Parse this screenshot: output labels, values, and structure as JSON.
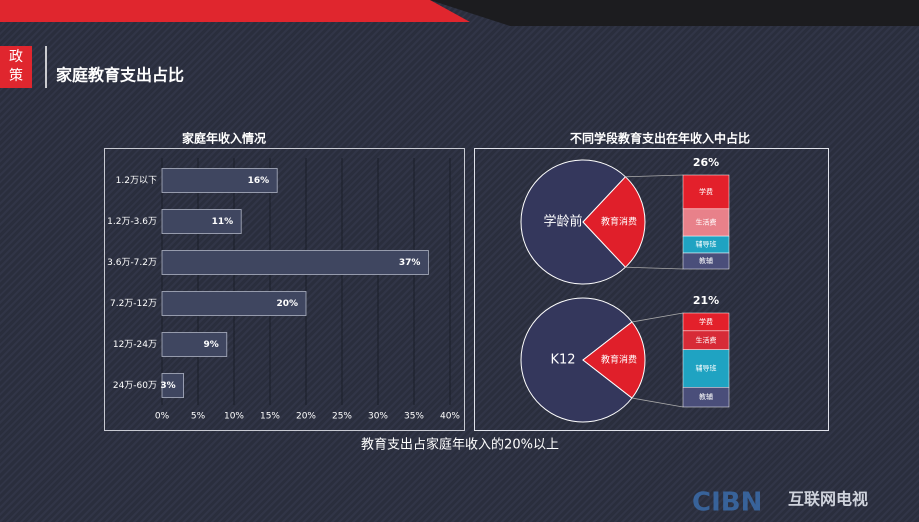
{
  "header": {
    "badge": [
      "政",
      "策"
    ],
    "title": "家庭教育支出占比"
  },
  "chart_data": [
    {
      "type": "bar",
      "orientation": "horizontal",
      "title": "家庭年收入情况",
      "categories": [
        "1.2万以下",
        "1.2万-3.6万",
        "3.6万-7.2万",
        "7.2万-12万",
        "12万-24万",
        "24万-60万"
      ],
      "values": [
        16,
        11,
        37,
        20,
        9,
        3
      ],
      "value_labels": [
        "16%",
        "11%",
        "37%",
        "20%",
        "9%",
        "3%"
      ],
      "color": "#3f4660",
      "xlim": [
        0,
        40
      ],
      "xticks": [
        {
          "value": 0,
          "label": "0%"
        },
        {
          "value": 5,
          "label": "5%"
        },
        {
          "value": 10,
          "label": "10%"
        },
        {
          "value": 15,
          "label": "15%"
        },
        {
          "value": 20,
          "label": "20%"
        },
        {
          "value": 25,
          "label": "25%"
        },
        {
          "value": 30,
          "label": "30%"
        },
        {
          "value": 35,
          "label": "35%"
        },
        {
          "value": 40,
          "label": "40%"
        }
      ],
      "grid": true
    },
    {
      "type": "pie",
      "title": "不同学段教育支出在年收入中占比",
      "categories": [
        "学龄前",
        "教育消费"
      ],
      "values": [
        74,
        26
      ],
      "value_labels": [
        null,
        "26%"
      ],
      "colors": [
        "#34375c",
        "#e01f2a"
      ],
      "breakdown": {
        "categories": [
          "学费",
          "生活费",
          "辅导班",
          "教辅"
        ],
        "values": [
          36,
          29,
          18,
          17
        ],
        "colors": [
          "#e3202b",
          "#e8818a",
          "#1fa3c2",
          "#4a4e7a"
        ]
      }
    },
    {
      "type": "pie",
      "categories": [
        "K12",
        "教育消费"
      ],
      "values": [
        79,
        21
      ],
      "value_labels": [
        null,
        "21%"
      ],
      "colors": [
        "#34375c",
        "#e01f2a"
      ],
      "breakdown": {
        "categories": [
          "学费",
          "生活费",
          "辅导班",
          "教辅"
        ],
        "values": [
          19,
          20,
          40,
          21
        ],
        "colors": [
          "#e3202b",
          "#d72b37",
          "#1fa3c2",
          "#4a4e7a"
        ]
      }
    }
  ],
  "footer": "教育支出占家庭年收入的20%以上",
  "logo": {
    "mark": "CIBN",
    "text": "互联网电视"
  }
}
